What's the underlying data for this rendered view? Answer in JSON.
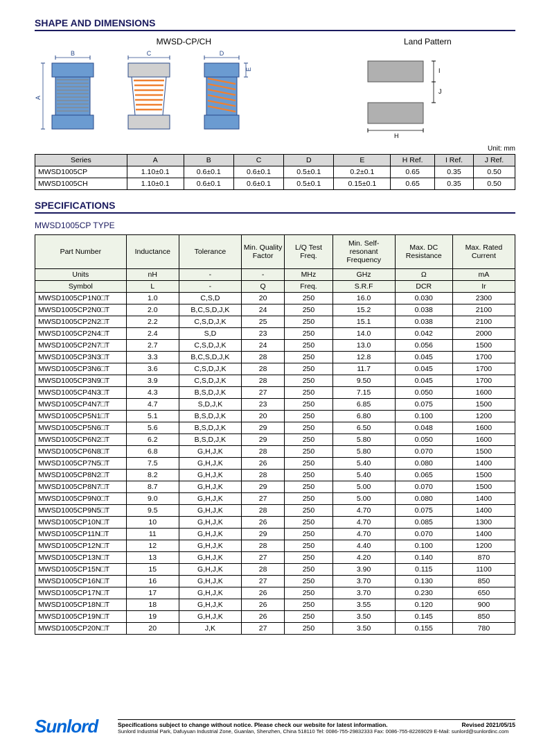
{
  "section1_title": "SHAPE AND DIMENSIONS",
  "diagram_title_left": "MWSD-CP/CH",
  "diagram_title_right": "Land Pattern",
  "unit_text": "Unit: mm",
  "dim_table": {
    "headers": [
      "Series",
      "A",
      "B",
      "C",
      "D",
      "E",
      "H Ref.",
      "I Ref.",
      "J Ref."
    ],
    "rows": [
      [
        "MWSD1005CP",
        "1.10±0.1",
        "0.6±0.1",
        "0.6±0.1",
        "0.5±0.1",
        "0.2±0.1",
        "0.65",
        "0.35",
        "0.50"
      ],
      [
        "MWSD1005CH",
        "1.10±0.1",
        "0.6±0.1",
        "0.6±0.1",
        "0.5±0.1",
        "0.15±0.1",
        "0.65",
        "0.35",
        "0.50"
      ]
    ]
  },
  "section2_title": "SPECIFICATIONS",
  "type_title": "MWSD1005CP TYPE",
  "spec_table": {
    "headers": [
      "Part Number",
      "Inductance",
      "Tolerance",
      "Min. Quality Factor",
      "L/Q Test Freq.",
      "Min. Self-resonant Frequency",
      "Max. DC Resistance",
      "Max. Rated Current"
    ],
    "units": [
      "Units",
      "nH",
      "-",
      "-",
      "MHz",
      "GHz",
      "Ω",
      "mA"
    ],
    "symbols": [
      "Symbol",
      "L",
      "-",
      "Q",
      "Freq.",
      "S.R.F",
      "DCR",
      "Ir"
    ],
    "rows": [
      [
        "MWSD1005CP1N0□T",
        "1.0",
        "C,S,D",
        "20",
        "250",
        "16.0",
        "0.030",
        "2300"
      ],
      [
        "MWSD1005CP2N0□T",
        "2.0",
        "B,C,S,D,J,K",
        "24",
        "250",
        "15.2",
        "0.038",
        "2100"
      ],
      [
        "MWSD1005CP2N2□T",
        "2.2",
        "C,S,D,J,K",
        "25",
        "250",
        "15.1",
        "0.038",
        "2100"
      ],
      [
        "MWSD1005CP2N4□T",
        "2.4",
        "S,D",
        "23",
        "250",
        "14.0",
        "0.042",
        "2000"
      ],
      [
        "MWSD1005CP2N7□T",
        "2.7",
        "C,S,D,J,K",
        "24",
        "250",
        "13.0",
        "0.056",
        "1500"
      ],
      [
        "MWSD1005CP3N3□T",
        "3.3",
        "B,C,S,D,J,K",
        "28",
        "250",
        "12.8",
        "0.045",
        "1700"
      ],
      [
        "MWSD1005CP3N6□T",
        "3.6",
        "C,S,D,J,K",
        "28",
        "250",
        "11.7",
        "0.045",
        "1700"
      ],
      [
        "MWSD1005CP3N9□T",
        "3.9",
        "C,S,D,J,K",
        "28",
        "250",
        "9.50",
        "0.045",
        "1700"
      ],
      [
        "MWSD1005CP4N3□T",
        "4.3",
        "B,S,D,J,K",
        "27",
        "250",
        "7.15",
        "0.050",
        "1600"
      ],
      [
        "MWSD1005CP4N7□T",
        "4.7",
        "S,D,J,K",
        "23",
        "250",
        "6.85",
        "0.075",
        "1500"
      ],
      [
        "MWSD1005CP5N1□T",
        "5.1",
        "B,S,D,J,K",
        "20",
        "250",
        "6.80",
        "0.100",
        "1200"
      ],
      [
        "MWSD1005CP5N6□T",
        "5.6",
        "B,S,D,J,K",
        "29",
        "250",
        "6.50",
        "0.048",
        "1600"
      ],
      [
        "MWSD1005CP6N2□T",
        "6.2",
        "B,S,D,J,K",
        "29",
        "250",
        "5.80",
        "0.050",
        "1600"
      ],
      [
        "MWSD1005CP6N8□T",
        "6.8",
        "G,H,J,K",
        "28",
        "250",
        "5.80",
        "0.070",
        "1500"
      ],
      [
        "MWSD1005CP7N5□T",
        "7.5",
        "G,H,J,K",
        "26",
        "250",
        "5.40",
        "0.080",
        "1400"
      ],
      [
        "MWSD1005CP8N2□T",
        "8.2",
        "G,H,J,K",
        "28",
        "250",
        "5.40",
        "0.065",
        "1500"
      ],
      [
        "MWSD1005CP8N7□T",
        "8.7",
        "G,H,J,K",
        "29",
        "250",
        "5.00",
        "0.070",
        "1500"
      ],
      [
        "MWSD1005CP9N0□T",
        "9.0",
        "G,H,J,K",
        "27",
        "250",
        "5.00",
        "0.080",
        "1400"
      ],
      [
        "MWSD1005CP9N5□T",
        "9.5",
        "G,H,J,K",
        "28",
        "250",
        "4.70",
        "0.075",
        "1400"
      ],
      [
        "MWSD1005CP10N□T",
        "10",
        "G,H,J,K",
        "26",
        "250",
        "4.70",
        "0.085",
        "1300"
      ],
      [
        "MWSD1005CP11N□T",
        "11",
        "G,H,J,K",
        "29",
        "250",
        "4.70",
        "0.070",
        "1400"
      ],
      [
        "MWSD1005CP12N□T",
        "12",
        "G,H,J,K",
        "28",
        "250",
        "4.40",
        "0.100",
        "1200"
      ],
      [
        "MWSD1005CP13N□T",
        "13",
        "G,H,J,K",
        "27",
        "250",
        "4.20",
        "0.140",
        "870"
      ],
      [
        "MWSD1005CP15N□T",
        "15",
        "G,H,J,K",
        "28",
        "250",
        "3.90",
        "0.115",
        "1100"
      ],
      [
        "MWSD1005CP16N□T",
        "16",
        "G,H,J,K",
        "27",
        "250",
        "3.70",
        "0.130",
        "850"
      ],
      [
        "MWSD1005CP17N□T",
        "17",
        "G,H,J,K",
        "26",
        "250",
        "3.70",
        "0.230",
        "650"
      ],
      [
        "MWSD1005CP18N□T",
        "18",
        "G,H,J,K",
        "26",
        "250",
        "3.55",
        "0.120",
        "900"
      ],
      [
        "MWSD1005CP19N□T",
        "19",
        "G,H,J,K",
        "26",
        "250",
        "3.50",
        "0.145",
        "850"
      ],
      [
        "MWSD1005CP20N□T",
        "20",
        "J,K",
        "27",
        "250",
        "3.50",
        "0.155",
        "780"
      ]
    ]
  },
  "footer": {
    "logo": "Sunlord",
    "notice": "Specifications subject to change without notice. Please check our website for latest information.",
    "revised": "Revised 2021/05/15",
    "address": "Sunlord Industrial Park, Dafuyuan Industrial Zone, Guanlan, Shenzhen, China 518110 Tel: 0086-755-29832333 Fax: 0086-755-82269029 E-Mail: sunlord@sunlordinc.com"
  },
  "colors": {
    "body_blue": "#6b9bd1",
    "cap_gray": "#d0d0d0",
    "wire_orange": "#f08030",
    "line": "#2a4a8a",
    "pad": "#b0b0b0"
  }
}
